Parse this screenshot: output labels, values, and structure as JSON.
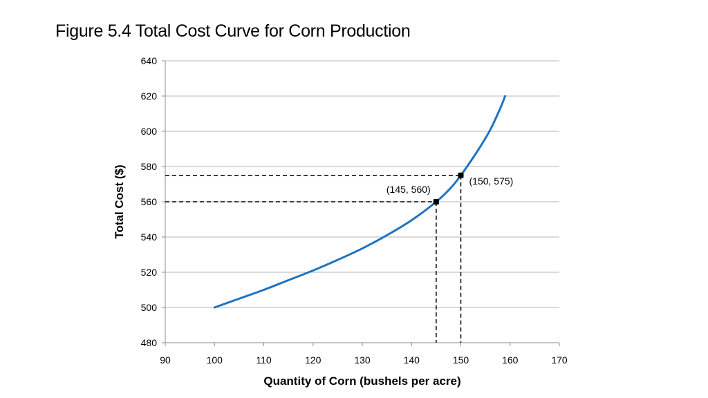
{
  "slide": {
    "title": "Figure 5.4  Total Cost Curve for Corn Production"
  },
  "chart_data": {
    "type": "line",
    "title": "Figure 5.4  Total Cost Curve for Corn Production",
    "xlabel": "Quantity of Corn (bushels per acre)",
    "ylabel": "Total Cost ($)",
    "xlim": [
      90,
      170
    ],
    "ylim": [
      480,
      640
    ],
    "x_ticks": [
      90,
      100,
      110,
      120,
      130,
      140,
      150,
      160,
      170
    ],
    "y_ticks": [
      480,
      500,
      520,
      540,
      560,
      580,
      600,
      620,
      640
    ],
    "grid": "horizontal",
    "series": [
      {
        "color": "#1f73c2",
        "x": [
          100,
          105,
          110,
          115,
          120,
          125,
          130,
          135,
          140,
          145,
          148,
          150,
          152,
          154,
          156,
          158,
          159
        ],
        "y": [
          500,
          505,
          510,
          515.5,
          521,
          527,
          533.5,
          541,
          549.5,
          560,
          568,
          575,
          583,
          591.5,
          601,
          613,
          620
        ]
      }
    ],
    "highlight_points": [
      {
        "x": 145,
        "y": 560,
        "label": "(145, 560)"
      },
      {
        "x": 150,
        "y": 575,
        "label": "(150, 575)"
      }
    ],
    "reference_lines": "dashed lines from each highlighted point to both axes"
  }
}
